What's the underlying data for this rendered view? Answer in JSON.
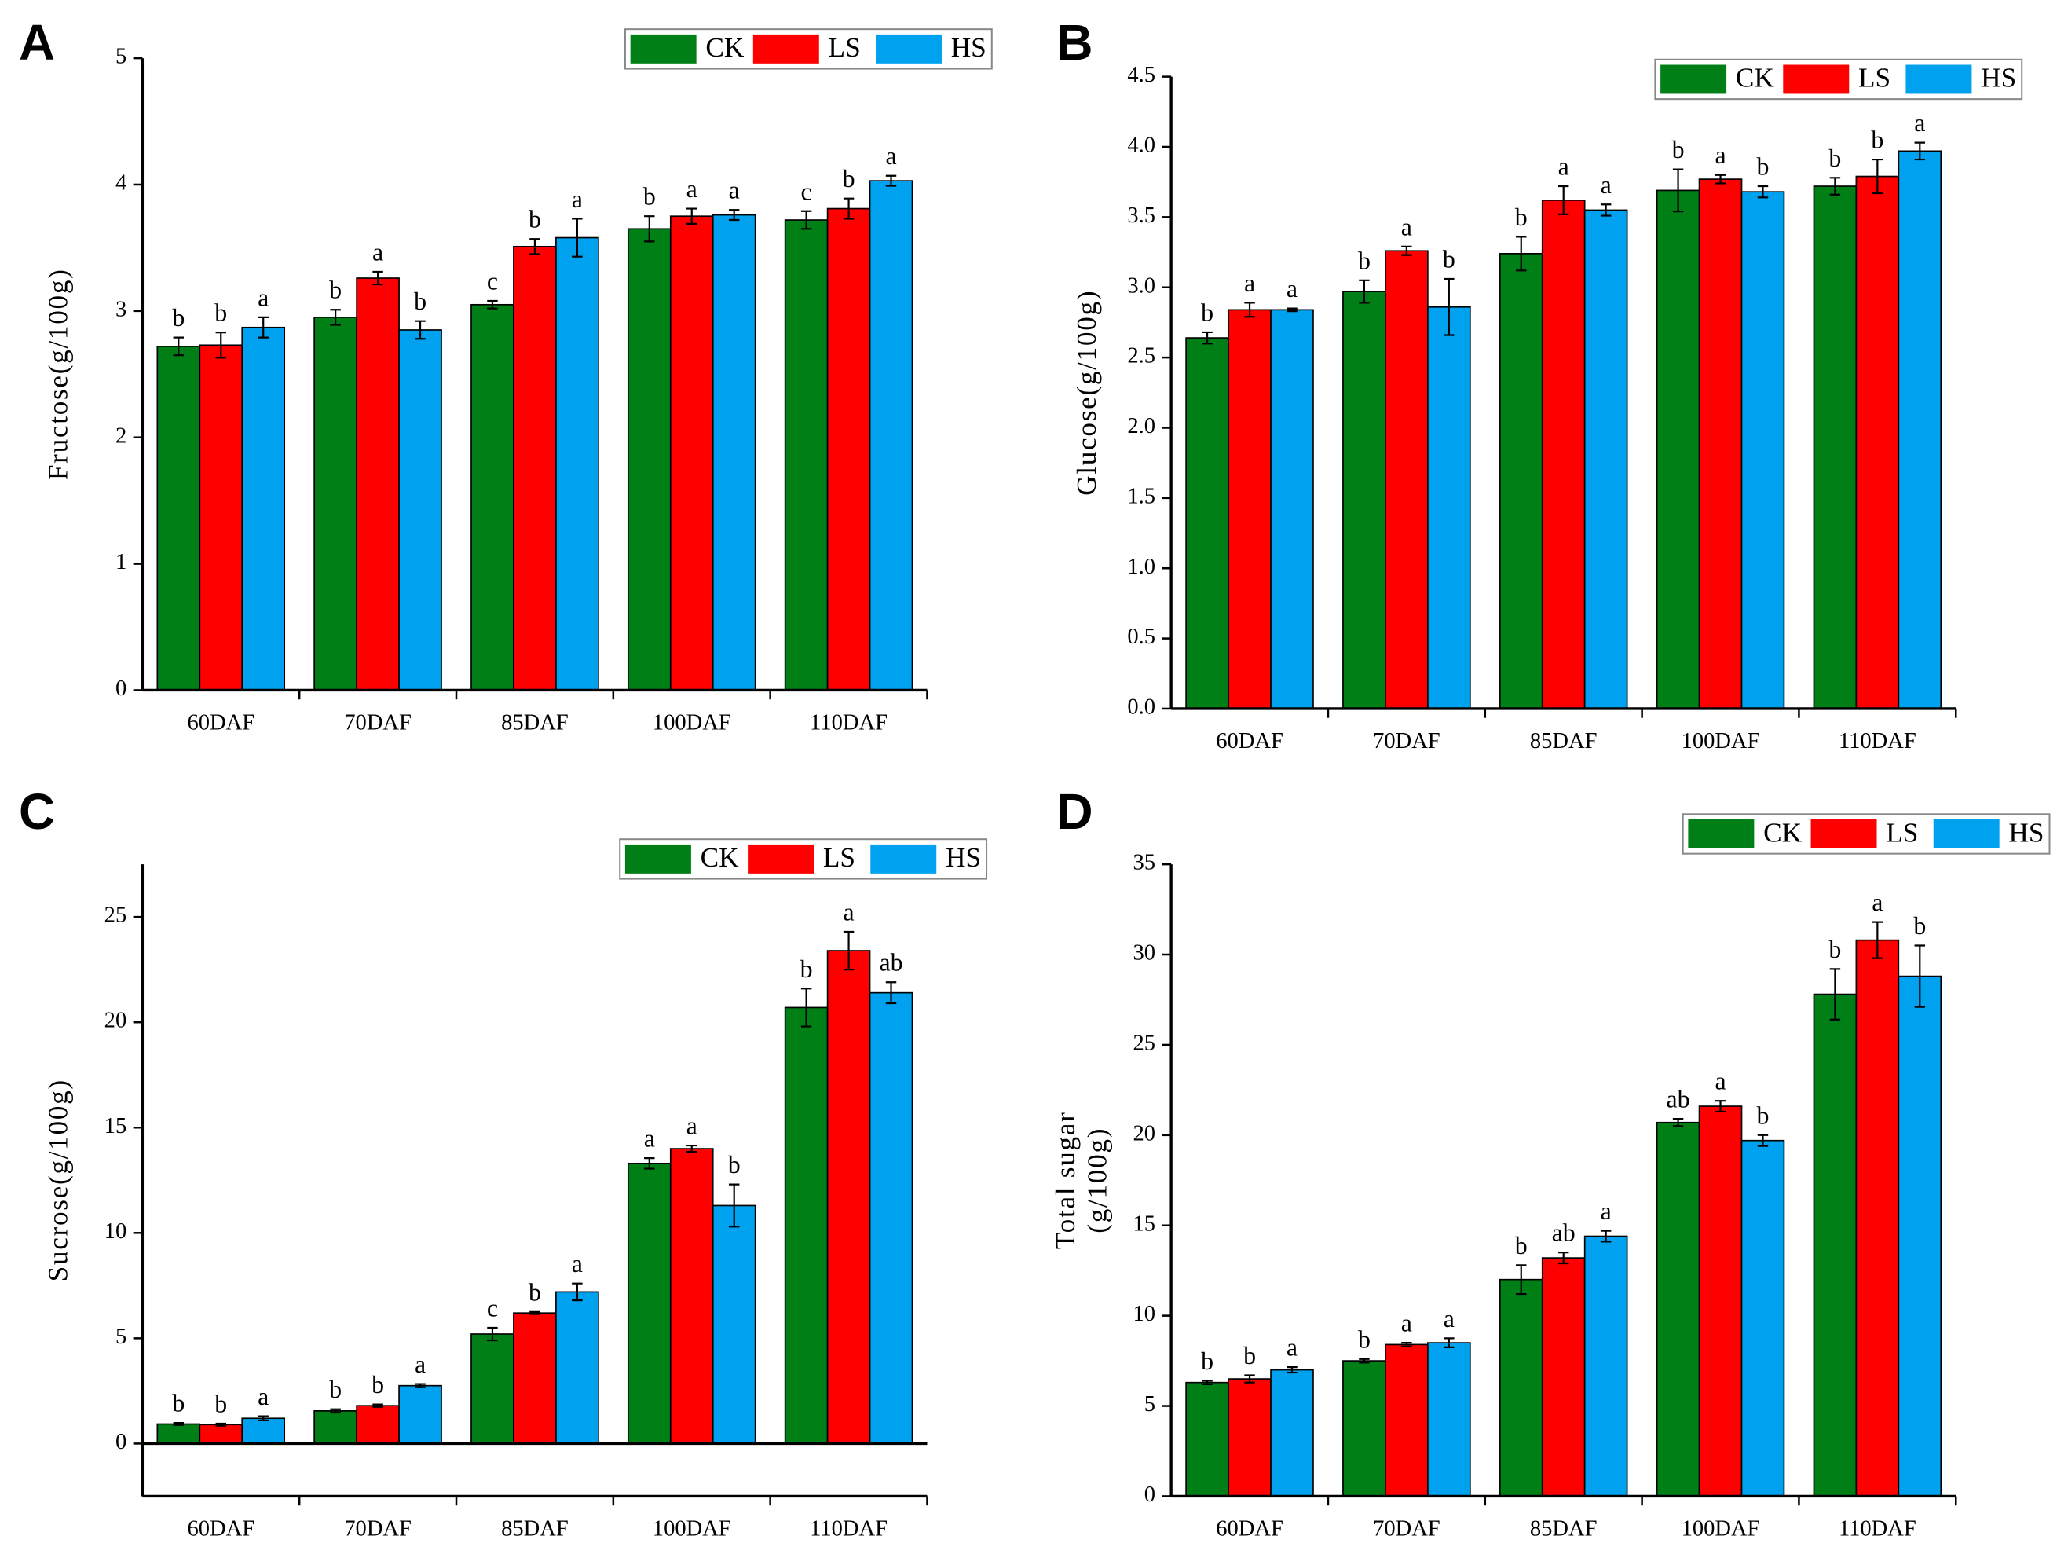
{
  "chart_data": [
    {
      "type": "bar",
      "panel": "A",
      "ylabel": "Fructose(g/100g)",
      "categories": [
        "60DAF",
        "70DAF",
        "85DAF",
        "100DAF",
        "110DAF"
      ],
      "ylim": [
        0,
        5
      ],
      "yticks": [
        0,
        1,
        2,
        3,
        4,
        5
      ],
      "series": [
        {
          "name": "CK",
          "color": "#007f16",
          "values": [
            2.72,
            2.95,
            3.05,
            3.65,
            3.72
          ],
          "errors": [
            0.07,
            0.06,
            0.03,
            0.1,
            0.07
          ],
          "letters": [
            "b",
            "b",
            "c",
            "b",
            "c"
          ]
        },
        {
          "name": "LS",
          "color": "#ff0000",
          "values": [
            2.73,
            3.26,
            3.51,
            3.75,
            3.81
          ],
          "errors": [
            0.1,
            0.05,
            0.06,
            0.06,
            0.08
          ],
          "letters": [
            "b",
            "a",
            "b",
            "a",
            "b"
          ]
        },
        {
          "name": "HS",
          "color": "#00a2f0",
          "values": [
            2.87,
            2.85,
            3.58,
            3.76,
            4.03
          ],
          "errors": [
            0.08,
            0.07,
            0.15,
            0.04,
            0.04
          ],
          "letters": [
            "a",
            "b",
            "a",
            "a",
            "a"
          ]
        }
      ]
    },
    {
      "type": "bar",
      "panel": "B",
      "ylabel": "Glucose(g/100g)",
      "categories": [
        "60DAF",
        "70DAF",
        "85DAF",
        "100DAF",
        "110DAF"
      ],
      "ylim": [
        0,
        4.5
      ],
      "yticks": [
        {
          "value": 0,
          "label": "0.0"
        },
        0.5,
        {
          "value": 1,
          "label": "1.0"
        },
        1.5,
        {
          "value": 2,
          "label": "2.0"
        },
        2.5,
        {
          "value": 3,
          "label": "3.0"
        },
        3.5,
        {
          "value": 4,
          "label": "4.0"
        },
        4.5
      ],
      "series": [
        {
          "name": "CK",
          "color": "#007f16",
          "values": [
            2.64,
            2.97,
            3.24,
            3.69,
            3.72
          ],
          "errors": [
            0.04,
            0.08,
            0.12,
            0.15,
            0.06
          ],
          "letters": [
            "b",
            "b",
            "b",
            "b",
            "b"
          ]
        },
        {
          "name": "LS",
          "color": "#ff0000",
          "values": [
            2.84,
            3.26,
            3.62,
            3.77,
            3.79
          ],
          "errors": [
            0.05,
            0.03,
            0.1,
            0.03,
            0.12
          ],
          "letters": [
            "a",
            "a",
            "a",
            "a",
            "b"
          ]
        },
        {
          "name": "HS",
          "color": "#00a2f0",
          "values": [
            2.84,
            2.86,
            3.55,
            3.68,
            3.97
          ],
          "errors": [
            0.01,
            0.2,
            0.04,
            0.04,
            0.06
          ],
          "letters": [
            "a",
            "b",
            "a",
            "b",
            "a"
          ]
        }
      ]
    },
    {
      "type": "bar",
      "panel": "C",
      "ylabel": "Sucrose(g/100g)",
      "categories": [
        "60DAF",
        "70DAF",
        "85DAF",
        "100DAF",
        "110DAF"
      ],
      "ylim": [
        -2.5,
        27.5
      ],
      "yticks": [
        0,
        5,
        10,
        15,
        20,
        25
      ],
      "series": [
        {
          "name": "CK",
          "color": "#007f16",
          "values": [
            0.93,
            1.55,
            5.2,
            13.3,
            20.7
          ],
          "errors": [
            0.05,
            0.08,
            0.3,
            0.25,
            0.9
          ],
          "letters": [
            "b",
            "b",
            "c",
            "a",
            "b"
          ]
        },
        {
          "name": "LS",
          "color": "#ff0000",
          "values": [
            0.9,
            1.8,
            6.2,
            14.0,
            23.4
          ],
          "errors": [
            0.05,
            0.06,
            0.05,
            0.15,
            0.9
          ],
          "letters": [
            "b",
            "b",
            "b",
            "a",
            "a"
          ]
        },
        {
          "name": "HS",
          "color": "#00a2f0",
          "values": [
            1.2,
            2.75,
            7.2,
            11.3,
            21.4
          ],
          "errors": [
            0.1,
            0.08,
            0.4,
            1.0,
            0.5
          ],
          "letters": [
            "a",
            "a",
            "a",
            "b",
            "ab"
          ]
        }
      ]
    },
    {
      "type": "bar",
      "panel": "D",
      "ylabel": [
        "Total sugar",
        "(g/100g)"
      ],
      "categories": [
        "60DAF",
        "70DAF",
        "85DAF",
        "100DAF",
        "110DAF"
      ],
      "ylim": [
        0,
        35
      ],
      "yticks": [
        0,
        5,
        10,
        15,
        20,
        25,
        30,
        35
      ],
      "series": [
        {
          "name": "CK",
          "color": "#007f16",
          "values": [
            6.3,
            7.5,
            12.0,
            20.7,
            27.8
          ],
          "errors": [
            0.1,
            0.1,
            0.8,
            0.2,
            1.4
          ],
          "letters": [
            "b",
            "b",
            "b",
            "ab",
            "b"
          ]
        },
        {
          "name": "LS",
          "color": "#ff0000",
          "values": [
            6.5,
            8.4,
            13.2,
            21.6,
            30.8
          ],
          "errors": [
            0.2,
            0.1,
            0.3,
            0.3,
            1.0
          ],
          "letters": [
            "b",
            "a",
            "ab",
            "a",
            "a"
          ]
        },
        {
          "name": "HS",
          "color": "#00a2f0",
          "values": [
            7.0,
            8.5,
            14.4,
            19.7,
            28.8
          ],
          "errors": [
            0.15,
            0.25,
            0.3,
            0.3,
            1.7
          ],
          "letters": [
            "a",
            "a",
            "a",
            "b",
            "b"
          ]
        }
      ]
    }
  ]
}
